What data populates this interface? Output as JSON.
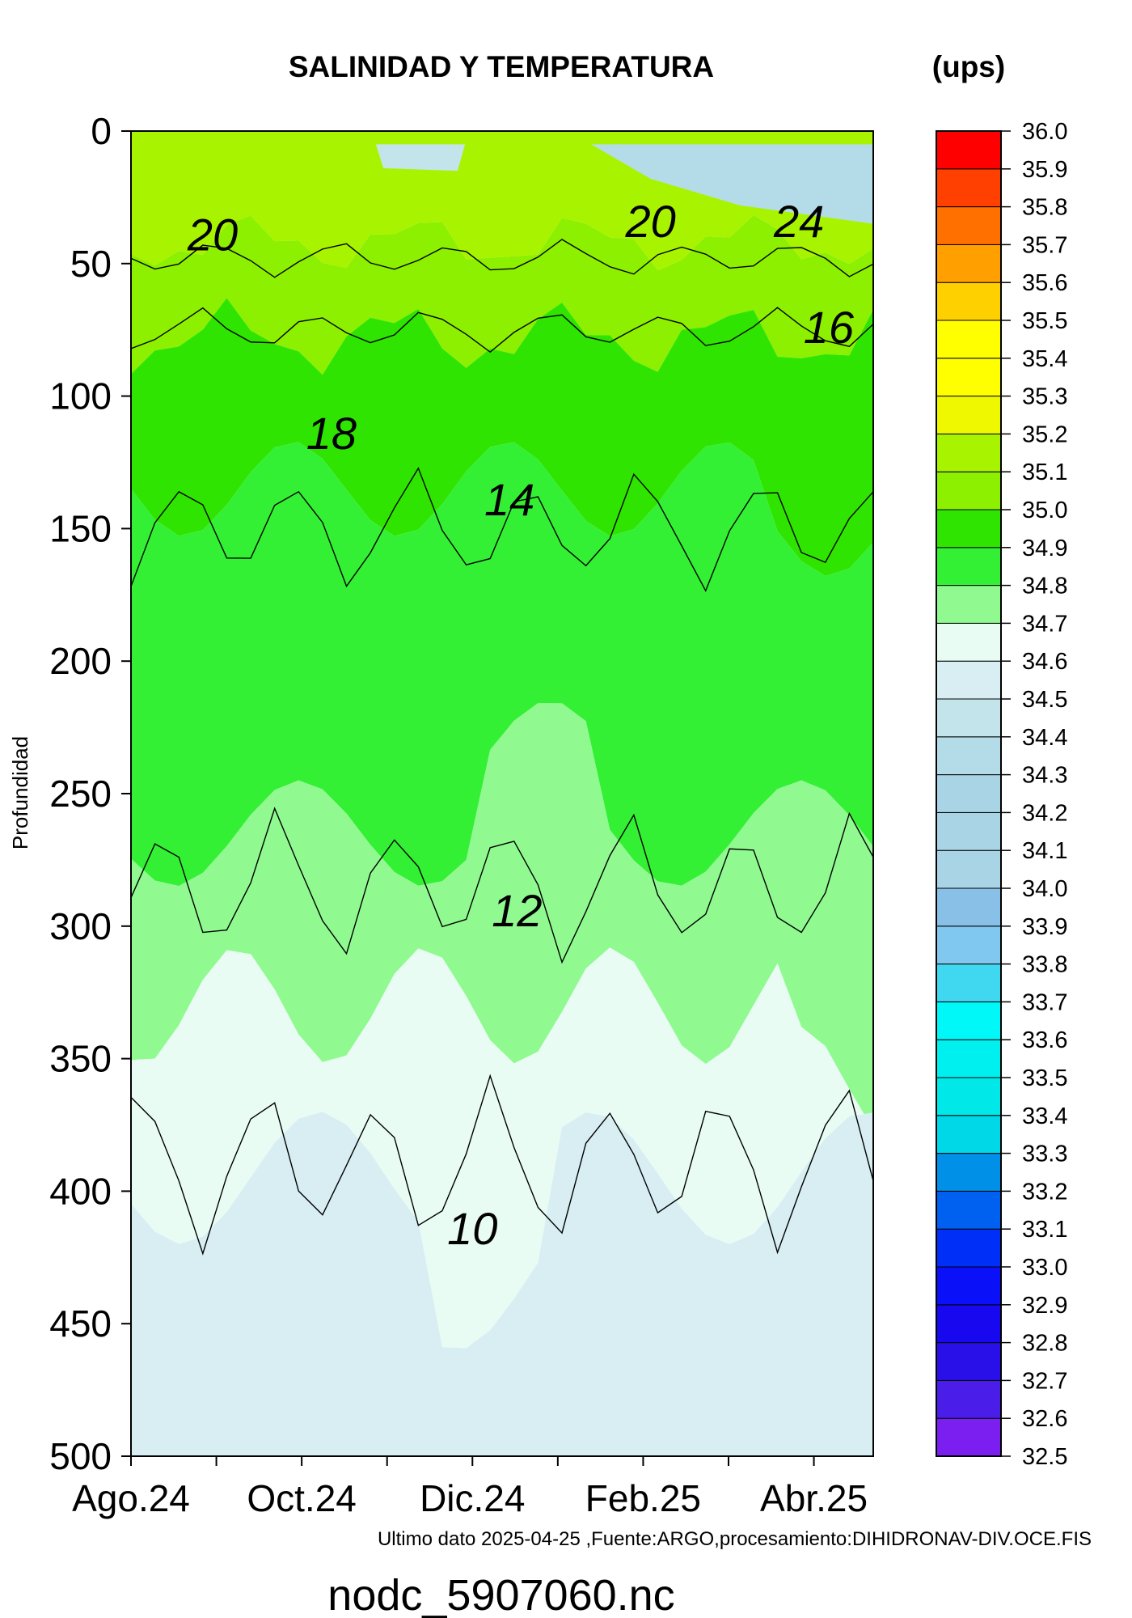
{
  "chart_data": {
    "type": "heatmap",
    "title": "SALINIDAD Y TEMPERATURA",
    "colorbar_unit": "(ups)",
    "ylabel": "Profundidad",
    "xlabel": "",
    "x_ticks": [
      "Ago.24",
      "Oct.24",
      "Dic.24",
      "Feb.25",
      "Abr.25"
    ],
    "y_ticks": [
      0,
      50,
      100,
      150,
      200,
      250,
      300,
      350,
      400,
      450,
      500
    ],
    "ylim": [
      0,
      500
    ],
    "y_reversed": true,
    "salinity_levels": [
      32.5,
      32.6,
      32.7,
      32.8,
      32.9,
      33.0,
      33.1,
      33.2,
      33.3,
      33.4,
      33.5,
      33.6,
      33.7,
      33.8,
      33.9,
      34.0,
      34.1,
      34.2,
      34.3,
      34.4,
      34.5,
      34.6,
      34.7,
      34.8,
      34.9,
      35.0,
      35.1,
      35.2,
      35.3,
      35.4,
      35.5,
      35.6,
      35.7,
      35.8,
      35.9,
      36.0
    ],
    "salinity_colors": [
      "#a030e8",
      "#7a1ff0",
      "#4a1ee8",
      "#2a10e8",
      "#1808f0",
      "#0a10f8",
      "#0030f8",
      "#0060f0",
      "#0090e8",
      "#00d8e8",
      "#00e8e8",
      "#00f0f0",
      "#00f8f8",
      "#40d8f0",
      "#80c8f0",
      "#88c0e8",
      "#a8d4e6",
      "#a8d4e6",
      "#a8d4e6",
      "#b4dce8",
      "#c4e4ec",
      "#d8eef2",
      "#e8fcf4",
      "#90fa90",
      "#34f034",
      "#2fe400",
      "#8cf000",
      "#a8f400",
      "#f0f800",
      "#ffff00",
      "#ffff00",
      "#ffd000",
      "#ffa000",
      "#ff7000",
      "#ff4000",
      "#ff0000"
    ],
    "temperature_contour_labels": [
      "20",
      "18",
      "20",
      "24",
      "16",
      "14",
      "12",
      "10"
    ],
    "footer_note": "Ultimo dato 2025-04-25 ,Fuente:ARGO,procesamiento:DIHIDRONAV-DIV.OCE.FIS",
    "file_label": "nodc_5907060.nc"
  }
}
